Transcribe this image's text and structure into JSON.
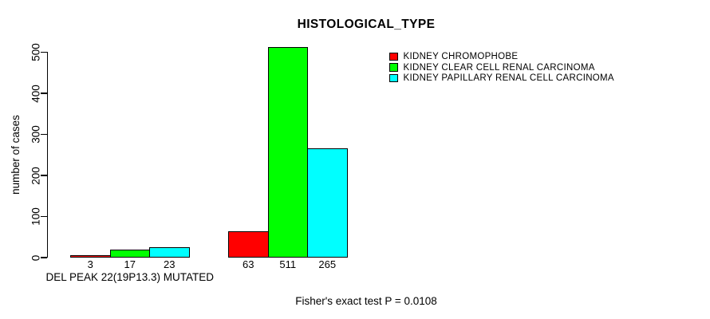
{
  "chart_data": {
    "type": "bar",
    "title": "HISTOLOGICAL_TYPE",
    "ylabel": "number of cases",
    "xlabel": "",
    "ylim": [
      0,
      511
    ],
    "yticks": [
      0,
      100,
      200,
      300,
      400,
      500
    ],
    "categories": [
      "DEL PEAK 22(19P13.3) MUTATED",
      ""
    ],
    "series": [
      {
        "name": "KIDNEY CHROMOPHOBE",
        "color": "#ff0000",
        "values": [
          3,
          63
        ]
      },
      {
        "name": "KIDNEY CLEAR CELL RENAL CARCINOMA",
        "color": "#00ff00",
        "values": [
          17,
          511
        ]
      },
      {
        "name": "KIDNEY PAPILLARY RENAL CELL CARCINOMA",
        "color": "#00ffff",
        "values": [
          23,
          265
        ]
      }
    ],
    "bar_value_labels": [
      [
        "3",
        "17",
        "23"
      ],
      [
        "63",
        "511",
        "265"
      ]
    ],
    "annotation": "Fisher's exact test P = 0.0108",
    "legend_position": "top-right",
    "grid": false,
    "bar_border_color": "#000000",
    "background": "#ffffff"
  }
}
